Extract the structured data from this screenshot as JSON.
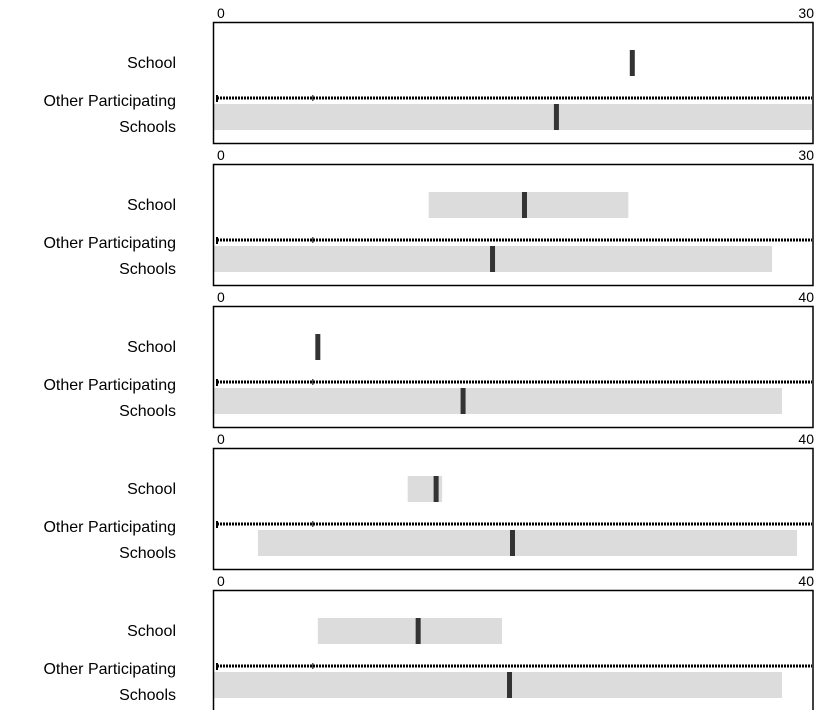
{
  "chart_data": [
    {
      "type": "range",
      "xlim": [
        0,
        30
      ],
      "tick_labels": [
        "0",
        "30"
      ],
      "categories": [
        "School",
        "Other Participating Schools"
      ],
      "rows": [
        {
          "label": "School",
          "low": null,
          "high": null,
          "median": 21
        },
        {
          "label": "Other Participating Schools",
          "low": 0,
          "high": 30,
          "median": 17.2
        }
      ]
    },
    {
      "type": "range",
      "xlim": [
        0,
        30
      ],
      "tick_labels": [
        "0",
        "30"
      ],
      "categories": [
        "School",
        "Other Participating Schools"
      ],
      "rows": [
        {
          "label": "School",
          "low": 10.8,
          "high": 20.8,
          "median": 15.6
        },
        {
          "label": "Other Participating Schools",
          "low": 0,
          "high": 28,
          "median": 14
        }
      ]
    },
    {
      "type": "range",
      "xlim": [
        0,
        40
      ],
      "tick_labels": [
        "0",
        "40"
      ],
      "categories": [
        "School",
        "Other Participating Schools"
      ],
      "rows": [
        {
          "label": "School",
          "low": null,
          "high": null,
          "median": 7
        },
        {
          "label": "Other Participating Schools",
          "low": 0,
          "high": 38,
          "median": 16.7
        }
      ]
    },
    {
      "type": "range",
      "xlim": [
        0,
        40
      ],
      "tick_labels": [
        "0",
        "40"
      ],
      "categories": [
        "School",
        "Other Participating Schools"
      ],
      "rows": [
        {
          "label": "School",
          "low": 13,
          "high": 15.3,
          "median": 14.9
        },
        {
          "label": "Other Participating Schools",
          "low": 3,
          "high": 39,
          "median": 20
        }
      ]
    },
    {
      "type": "range",
      "xlim": [
        0,
        40
      ],
      "tick_labels": [
        "0",
        "40"
      ],
      "categories": [
        "School",
        "Other Participating Schools"
      ],
      "rows": [
        {
          "label": "School",
          "low": 7,
          "high": 19.3,
          "median": 13.7
        },
        {
          "label": "Other Participating Schools",
          "low": 0,
          "high": 38,
          "median": 19.8
        }
      ]
    }
  ],
  "colors": {
    "range_fill": "#dcdcdc",
    "median_mark": "#333333",
    "frame": "#000000"
  }
}
